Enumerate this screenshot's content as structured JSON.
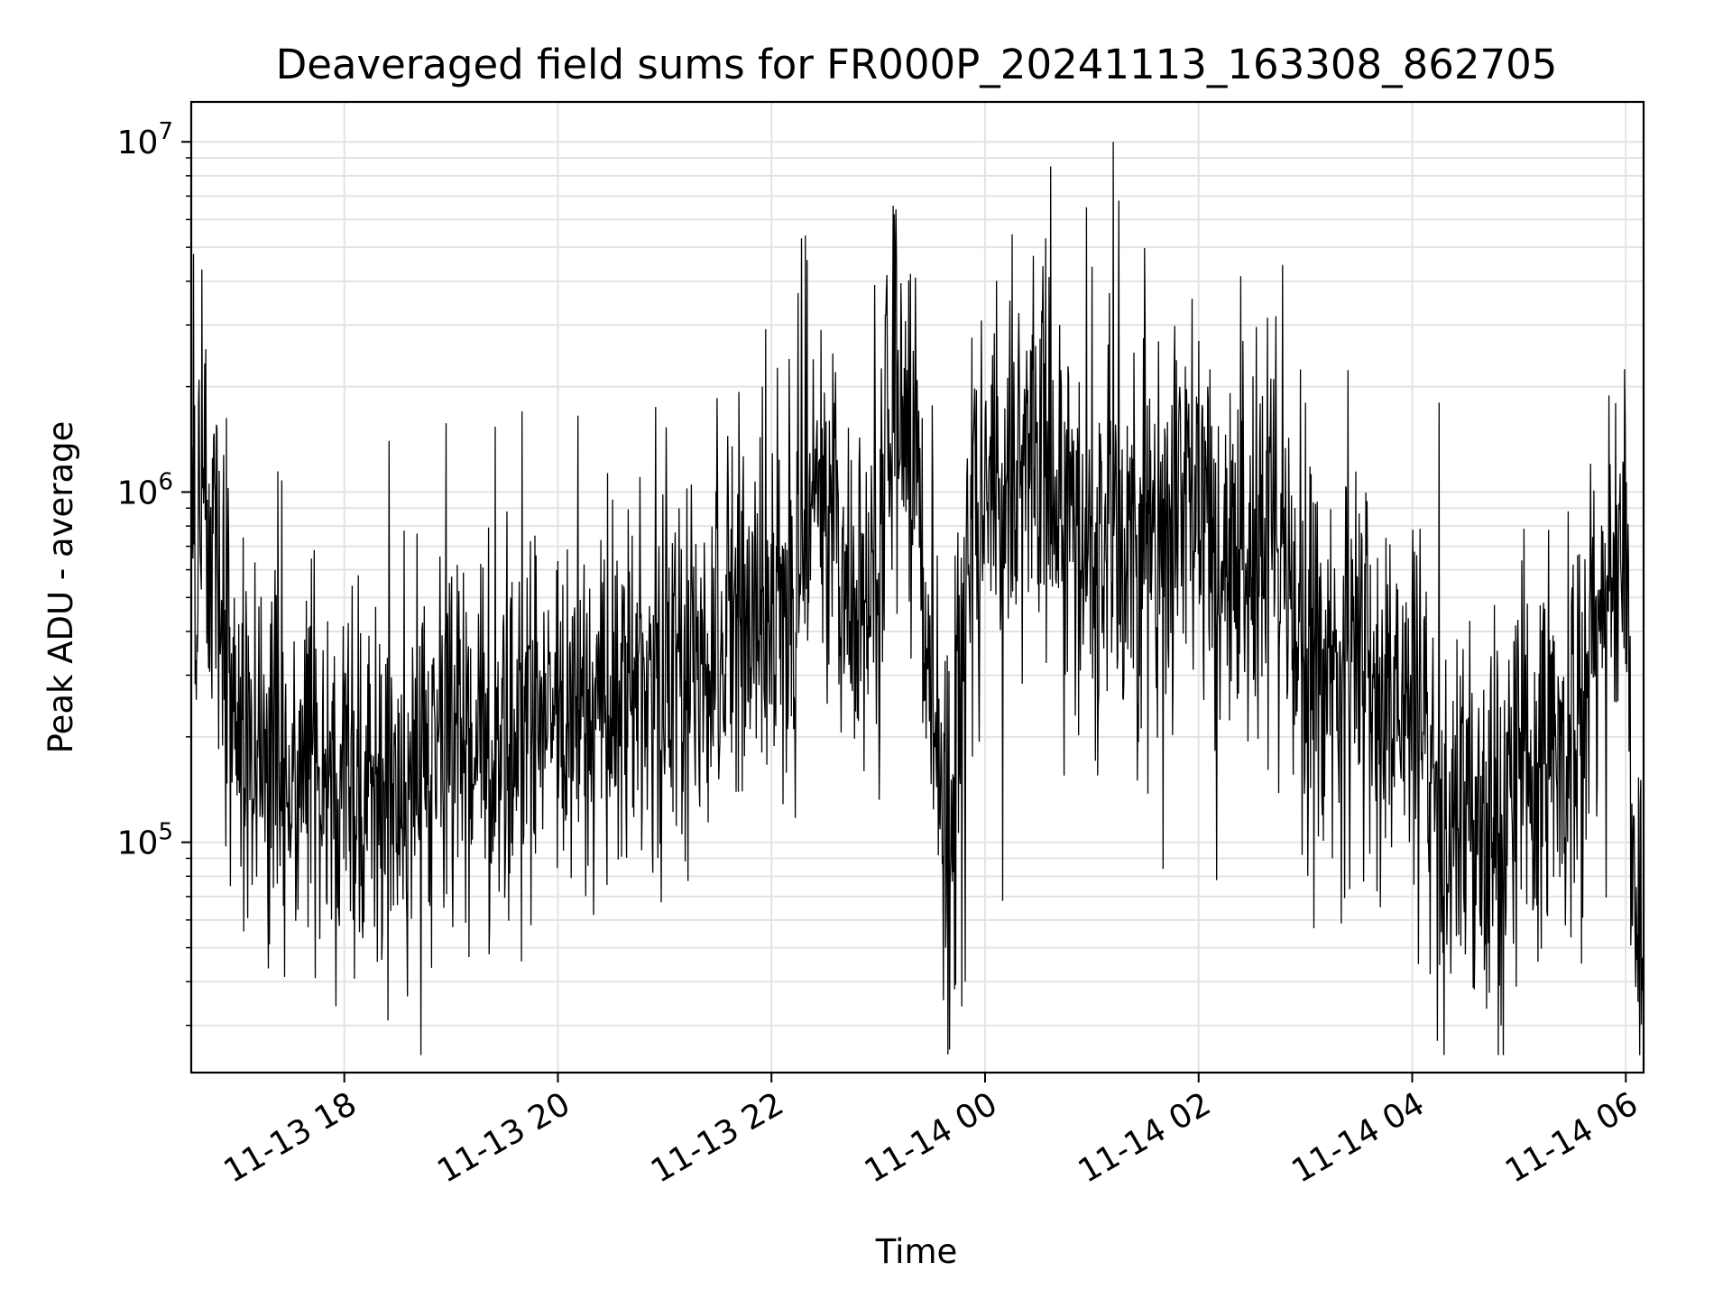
{
  "chart_data": {
    "type": "line",
    "title": "Deaveraged field sums for FR000P_20241113_163308_862705",
    "xlabel": "Time",
    "ylabel": "Peak ADU - average",
    "yscale": "log",
    "grid": true,
    "ylim": [
      22000,
      13000000
    ],
    "xlim": [
      "2024-11-13 16:34",
      "2024-11-14 06:10"
    ],
    "x_ticks": [
      {
        "time": "2024-11-13 18:00",
        "label": "11-13 18"
      },
      {
        "time": "2024-11-13 20:00",
        "label": "11-13 20"
      },
      {
        "time": "2024-11-13 22:00",
        "label": "11-13 22"
      },
      {
        "time": "2024-11-14 00:00",
        "label": "11-14 00"
      },
      {
        "time": "2024-11-14 02:00",
        "label": "11-14 02"
      },
      {
        "time": "2024-11-14 04:00",
        "label": "11-14 04"
      },
      {
        "time": "2024-11-14 06:00",
        "label": "11-14 06"
      }
    ],
    "y_ticks": [
      {
        "value": 100000,
        "base": "10",
        "exp": "5"
      },
      {
        "value": 1000000,
        "base": "10",
        "exp": "6"
      },
      {
        "value": 10000000,
        "base": "10",
        "exp": "7"
      }
    ],
    "series": [
      {
        "color": "#000000",
        "points": [
          [
            "2024-11-13 16:34",
            650000
          ],
          [
            "2024-11-13 16:40",
            900000
          ],
          [
            "2024-11-13 16:46",
            780000
          ],
          [
            "2024-11-13 16:52",
            420000
          ],
          [
            "2024-11-13 17:00",
            220000
          ],
          [
            "2024-11-13 17:10",
            180000
          ],
          [
            "2024-11-13 17:20",
            160000
          ],
          [
            "2024-11-13 17:30",
            140000
          ],
          [
            "2024-11-13 17:40",
            190000
          ],
          [
            "2024-11-13 17:50",
            150000
          ],
          [
            "2024-11-13 18:00",
            170000
          ],
          [
            "2024-11-13 18:15",
            140000
          ],
          [
            "2024-11-13 18:30",
            150000
          ],
          [
            "2024-11-13 18:45",
            130000
          ],
          [
            "2024-11-13 19:00",
            210000
          ],
          [
            "2024-11-13 19:15",
            180000
          ],
          [
            "2024-11-13 19:30",
            200000
          ],
          [
            "2024-11-13 19:45",
            260000
          ],
          [
            "2024-11-13 20:00",
            240000
          ],
          [
            "2024-11-13 20:15",
            210000
          ],
          [
            "2024-11-13 20:30",
            250000
          ],
          [
            "2024-11-13 20:45",
            300000
          ],
          [
            "2024-11-13 21:00",
            320000
          ],
          [
            "2024-11-13 21:15",
            340000
          ],
          [
            "2024-11-13 21:30",
            330000
          ],
          [
            "2024-11-13 21:45",
            420000
          ],
          [
            "2024-11-13 22:00",
            500000
          ],
          [
            "2024-11-13 22:15",
            480000
          ],
          [
            "2024-11-13 22:25",
            1200000
          ],
          [
            "2024-11-13 22:35",
            900000
          ],
          [
            "2024-11-13 22:45",
            500000
          ],
          [
            "2024-11-13 23:00",
            450000
          ],
          [
            "2024-11-13 23:10",
            1500000
          ],
          [
            "2024-11-13 23:20",
            1300000
          ],
          [
            "2024-11-13 23:30",
            300000
          ],
          [
            "2024-11-13 23:40",
            110000
          ],
          [
            "2024-11-13 23:50",
            800000
          ],
          [
            "2024-11-14 00:00",
            900000
          ],
          [
            "2024-11-14 00:15",
            1100000
          ],
          [
            "2024-11-14 00:30",
            1300000
          ],
          [
            "2024-11-14 00:45",
            900000
          ],
          [
            "2024-11-14 01:00",
            600000
          ],
          [
            "2024-11-14 01:15",
            650000
          ],
          [
            "2024-11-14 01:30",
            700000
          ],
          [
            "2024-11-14 01:45",
            800000
          ],
          [
            "2024-11-14 02:00",
            900000
          ],
          [
            "2024-11-14 02:15",
            700000
          ],
          [
            "2024-11-14 02:30",
            750000
          ],
          [
            "2024-11-14 02:45",
            800000
          ],
          [
            "2024-11-14 03:00",
            350000
          ],
          [
            "2024-11-14 03:15",
            300000
          ],
          [
            "2024-11-14 03:30",
            400000
          ],
          [
            "2024-11-14 03:45",
            250000
          ],
          [
            "2024-11-14 04:00",
            200000
          ],
          [
            "2024-11-14 04:15",
            130000
          ],
          [
            "2024-11-14 04:30",
            120000
          ],
          [
            "2024-11-14 04:45",
            140000
          ],
          [
            "2024-11-14 05:00",
            150000
          ],
          [
            "2024-11-14 05:15",
            170000
          ],
          [
            "2024-11-14 05:30",
            220000
          ],
          [
            "2024-11-14 05:45",
            400000
          ],
          [
            "2024-11-14 06:00",
            600000
          ],
          [
            "2024-11-14 06:05",
            80000
          ],
          [
            "2024-11-14 06:10",
            50000
          ]
        ],
        "noise_sigma": 0.55,
        "spikes": [
          [
            "2024-11-13 16:46",
            1250000
          ],
          [
            "2024-11-13 17:25",
            1080000
          ],
          [
            "2024-11-13 18:25",
            1400000
          ],
          [
            "2024-11-13 19:40",
            1700000
          ],
          [
            "2024-11-13 20:55",
            1750000
          ],
          [
            "2024-11-13 21:55",
            2000000
          ],
          [
            "2024-11-13 22:10",
            2400000
          ],
          [
            "2024-11-13 22:15",
            3700000
          ],
          [
            "2024-11-13 22:17",
            5300000
          ],
          [
            "2024-11-13 22:19",
            5400000
          ],
          [
            "2024-11-13 22:20",
            4600000
          ],
          [
            "2024-11-13 22:36",
            2200000
          ],
          [
            "2024-11-13 22:58",
            3900000
          ],
          [
            "2024-11-13 23:04",
            3200000
          ],
          [
            "2024-11-13 23:08",
            2600000
          ],
          [
            "2024-11-13 23:13",
            3100000
          ],
          [
            "2024-11-13 23:18",
            4200000
          ],
          [
            "2024-11-13 23:21",
            4100000
          ],
          [
            "2024-11-14 00:34",
            5300000
          ],
          [
            "2024-11-14 00:37",
            8500000
          ],
          [
            "2024-11-14 00:42",
            3000000
          ],
          [
            "2024-11-14 00:57",
            6500000
          ],
          [
            "2024-11-14 01:00",
            4400000
          ],
          [
            "2024-11-14 01:10",
            3700000
          ],
          [
            "2024-11-14 01:12",
            10000000
          ],
          [
            "2024-11-14 01:15",
            2200000
          ],
          [
            "2024-11-14 01:30",
            3000000
          ],
          [
            "2024-11-14 02:00",
            2700000
          ],
          [
            "2024-11-14 02:25",
            2700000
          ],
          [
            "2024-11-14 03:00",
            1800000
          ],
          [
            "2024-11-14 04:15",
            1800000
          ]
        ],
        "dips": [
          [
            "2024-11-13 16:56",
            75000
          ],
          [
            "2024-11-13 18:05",
            60000
          ],
          [
            "2024-11-13 19:10",
            47000
          ],
          [
            "2024-11-13 19:45",
            58000
          ],
          [
            "2024-11-13 20:20",
            62000
          ],
          [
            "2024-11-13 23:38",
            50000
          ],
          [
            "2024-11-13 23:43",
            38000
          ],
          [
            "2024-11-13 23:47",
            34000
          ],
          [
            "2024-11-13 23:49",
            40000
          ],
          [
            "2024-11-14 00:10",
            68000
          ],
          [
            "2024-11-14 01:40",
            84000
          ],
          [
            "2024-11-14 02:10",
            78000
          ],
          [
            "2024-11-14 03:15",
            90000
          ],
          [
            "2024-11-14 04:10",
            42000
          ],
          [
            "2024-11-14 04:35",
            38000
          ],
          [
            "2024-11-14 04:50",
            30000
          ],
          [
            "2024-11-14 05:35",
            45000
          ],
          [
            "2024-11-14 06:07",
            35000
          ]
        ]
      }
    ]
  }
}
